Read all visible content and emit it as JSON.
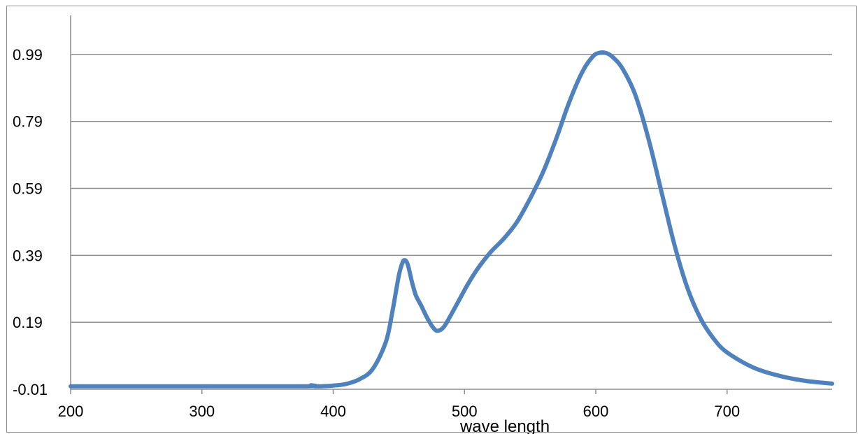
{
  "chart_data": {
    "type": "line",
    "title": "",
    "xlabel": "wave length",
    "ylabel": "",
    "xlim": [
      200,
      780
    ],
    "ylim": [
      -0.01,
      1.09
    ],
    "x_ticks": [
      200,
      300,
      400,
      500,
      600,
      700
    ],
    "y_ticks": [
      -0.01,
      0.19,
      0.39,
      0.59,
      0.79,
      0.99
    ],
    "x_tick_labels": [
      "200",
      "300",
      "400",
      "500",
      "600",
      "700"
    ],
    "y_tick_labels": [
      "-0.01",
      "0.19",
      "0.39",
      "0.59",
      "0.79",
      "0.99"
    ],
    "grid": true,
    "series": [
      {
        "color": "#4f81bd",
        "x": [
          200,
          300,
          380,
          383,
          386,
          400,
          410,
          420,
          430,
          440,
          445,
          450,
          453,
          455,
          457,
          460,
          463,
          467,
          472,
          477,
          480,
          484,
          488,
          495,
          502,
          510,
          520,
          530,
          540,
          550,
          560,
          570,
          580,
          590,
          598,
          603,
          607,
          612,
          620,
          630,
          640,
          650,
          660,
          670,
          680,
          690,
          700,
          720,
          740,
          760,
          780
        ],
        "y": [
          -0.001,
          -0.001,
          -0.001,
          0.002,
          -0.001,
          0.001,
          0.006,
          0.02,
          0.05,
          0.13,
          0.22,
          0.33,
          0.37,
          0.375,
          0.36,
          0.31,
          0.27,
          0.24,
          0.2,
          0.17,
          0.165,
          0.175,
          0.2,
          0.25,
          0.3,
          0.35,
          0.4,
          0.44,
          0.49,
          0.56,
          0.64,
          0.74,
          0.85,
          0.94,
          0.985,
          0.995,
          0.995,
          0.985,
          0.95,
          0.87,
          0.74,
          0.58,
          0.42,
          0.29,
          0.2,
          0.14,
          0.1,
          0.055,
          0.03,
          0.015,
          0.007
        ]
      }
    ]
  }
}
